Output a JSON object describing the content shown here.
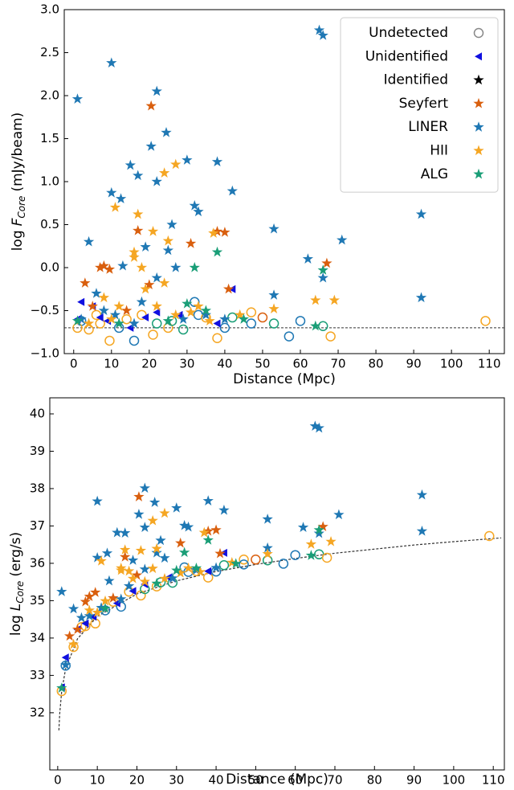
{
  "chart_data": [
    {
      "type": "scatter",
      "xlabel": "Distance (Mpc)",
      "ylabel": {
        "prefix": "log",
        "variable": "F",
        "subscript": "Core",
        "suffix": "(mJy/beam)"
      },
      "xlim": [
        -2.5,
        114
      ],
      "ylim": [
        -1,
        3
      ],
      "xticks": [
        0,
        10,
        20,
        30,
        40,
        50,
        60,
        70,
        80,
        90,
        100,
        110
      ],
      "yticks": [
        {
          "value": -1,
          "label": "−1.0"
        },
        {
          "value": -0.5,
          "label": "−0.5"
        },
        {
          "value": 0,
          "label": "0.0"
        },
        {
          "value": 0.5,
          "label": "0.5"
        },
        {
          "value": 1,
          "label": "1.0"
        },
        {
          "value": 1.5,
          "label": "1.5"
        },
        {
          "value": 2,
          "label": "2.0"
        },
        {
          "value": 2.5,
          "label": "2.5"
        },
        {
          "value": 3,
          "label": "3.0"
        }
      ],
      "legend": "upper right",
      "hline": {
        "value": -0.7,
        "color": "#333333"
      },
      "series": [
        {
          "name": "Undetected",
          "marker": "circle",
          "color": "#888888",
          "x": [
            2,
            4,
            7,
            9.5,
            12,
            16,
            21,
            22,
            25,
            29,
            32,
            33,
            38,
            42,
            47,
            47,
            50,
            53,
            57,
            60,
            66,
            68,
            109,
            1,
            14,
            18,
            26,
            35,
            40,
            6
          ],
          "values": [
            -0.62,
            -0.72,
            -0.65,
            -0.85,
            -0.7,
            -0.85,
            -0.78,
            -0.65,
            -0.7,
            -0.72,
            -0.4,
            -0.55,
            -0.82,
            -0.58,
            -0.52,
            -0.65,
            -0.58,
            -0.65,
            -0.8,
            -0.62,
            -0.68,
            -0.8,
            -0.62,
            -0.7,
            -0.6,
            -0.55,
            -0.62,
            -0.58,
            -0.7,
            -0.55
          ],
          "colors": [
            "#1f78b4",
            "#f5a623",
            "#f5a623",
            "#f5a623",
            "#1f78b4",
            "#1f78b4",
            "#f5a623",
            "#1a9e77",
            "#f5a623",
            "#1a9e77",
            "#1f78b4",
            "#1f78b4",
            "#f5a623",
            "#1a9e77",
            "#f5a623",
            "#1f78b4",
            "#d95f0e",
            "#1a9e77",
            "#1f78b4",
            "#1f78b4",
            "#1a9e77",
            "#f5a623",
            "#f5a623",
            "#f5a623",
            "#f5a623",
            "#f5a623",
            "#1a9e77",
            "#f5a623",
            "#1f78b4",
            "#f5a623"
          ]
        },
        {
          "name": "Unidentified",
          "marker": "triangle",
          "color": "#1010e0",
          "x": [
            2,
            5,
            9,
            22,
            42,
            1,
            7,
            15,
            28,
            38,
            19
          ],
          "values": [
            -0.4,
            -0.45,
            -0.62,
            -0.52,
            -0.25,
            -0.6,
            -0.58,
            -0.7,
            -0.55,
            -0.65,
            -0.58
          ]
        },
        {
          "name": "Identified",
          "marker": "star",
          "color": "#000000",
          "x": [],
          "values": []
        },
        {
          "name": "Seyfert",
          "marker": "star",
          "color": "#d95f0e",
          "x": [
            20.5,
            38,
            40,
            8,
            7,
            9.5,
            17,
            31,
            67,
            3,
            41,
            20,
            14,
            5
          ],
          "values": [
            1.88,
            0.42,
            0.41,
            0.02,
            0,
            -0.02,
            0.43,
            0.28,
            0.05,
            -0.18,
            -0.25,
            -0.2,
            -0.5,
            -0.45
          ]
        },
        {
          "name": "LINER",
          "marker": "star",
          "color": "#1f78b4",
          "x": [
            1,
            10,
            22,
            65,
            66,
            24.5,
            20.5,
            17,
            15,
            10,
            12.5,
            22,
            30,
            38,
            42,
            32,
            33,
            26,
            4,
            13,
            19,
            25,
            27,
            22,
            53,
            62,
            66,
            71,
            92,
            92,
            53,
            6,
            11,
            18,
            35,
            2,
            40,
            8,
            29,
            16
          ],
          "values": [
            1.96,
            2.38,
            2.05,
            2.76,
            2.7,
            1.57,
            1.41,
            1.07,
            1.19,
            0.87,
            0.8,
            1,
            1.25,
            1.23,
            0.89,
            0.72,
            0.65,
            0.5,
            0.3,
            0.02,
            0.24,
            0.2,
            0,
            -0.12,
            0.45,
            0.1,
            -0.12,
            0.32,
            0.62,
            -0.35,
            -0.32,
            -0.3,
            -0.55,
            -0.4,
            -0.55,
            -0.6,
            -0.6,
            -0.5,
            -0.6,
            -0.65
          ]
        },
        {
          "name": "HII",
          "marker": "star",
          "color": "#f5a623",
          "x": [
            11,
            24,
            27,
            17,
            16,
            21,
            25,
            37,
            16,
            18,
            24,
            64,
            69,
            53,
            19,
            8,
            12,
            22,
            33,
            4,
            10,
            27,
            36,
            44,
            31
          ],
          "values": [
            0.7,
            1.1,
            1.2,
            0.62,
            0.18,
            0.42,
            0.31,
            0.4,
            0.12,
            0,
            -0.18,
            -0.38,
            -0.38,
            -0.48,
            -0.25,
            -0.35,
            -0.45,
            -0.45,
            -0.45,
            -0.65,
            -0.6,
            -0.55,
            -0.62,
            -0.55,
            -0.52
          ]
        },
        {
          "name": "ALG",
          "marker": "star",
          "color": "#1a9e77",
          "x": [
            38,
            32,
            66,
            1,
            30,
            64,
            45,
            25,
            12,
            35
          ],
          "values": [
            0.18,
            0,
            -0.03,
            -0.62,
            -0.42,
            -0.68,
            -0.6,
            -0.62,
            -0.65,
            -0.5
          ]
        }
      ]
    },
    {
      "type": "scatter",
      "xlabel": "Distance (Mpc)",
      "ylabel": {
        "prefix": "log",
        "variable": "L",
        "subscript": "Core",
        "suffix": "(erg/s)"
      },
      "xlim": [
        -2,
        112.8
      ],
      "ylim": [
        30.47,
        40.43
      ],
      "xticks": [
        0,
        10,
        20,
        30,
        40,
        50,
        60,
        70,
        80,
        90,
        100,
        110
      ],
      "yticks": [
        32,
        33,
        34,
        35,
        36,
        37,
        38,
        39,
        40
      ],
      "curve": {
        "color": "#333333",
        "x": [
          0.3,
          0.5,
          1,
          2,
          5,
          10,
          20,
          30,
          40,
          50,
          60,
          70,
          80,
          90,
          100,
          112
        ],
        "values": [
          31.53,
          31.97,
          32.57,
          33.18,
          33.98,
          34.58,
          35.18,
          35.53,
          35.78,
          35.97,
          36.13,
          36.27,
          36.38,
          36.49,
          36.58,
          36.68
        ]
      },
      "series": [
        {
          "marker": "circle",
          "color": "#888888",
          "x": [
            2,
            4,
            7,
            9.5,
            12,
            16,
            21,
            22,
            25,
            29,
            32,
            33,
            38,
            42,
            47,
            47,
            50,
            53,
            57,
            60,
            66,
            68,
            109,
            1,
            14,
            18,
            26,
            35,
            40,
            6
          ],
          "values": [
            33.26,
            33.76,
            34.32,
            34.39,
            34.74,
            34.84,
            35.14,
            35.31,
            35.38,
            35.48,
            35.89,
            35.77,
            35.62,
            35.95,
            36.1,
            35.97,
            36.1,
            36.08,
            35.99,
            36.22,
            36.24,
            36.15,
            36.73,
            32.58,
            34.97,
            35.24,
            35.49,
            35.79,
            35.78,
            34.29
          ],
          "colors": [
            "#1f78b4",
            "#f5a623",
            "#f5a623",
            "#f5a623",
            "#1f78b4",
            "#1f78b4",
            "#f5a623",
            "#1a9e77",
            "#f5a623",
            "#1a9e77",
            "#1f78b4",
            "#1f78b4",
            "#f5a623",
            "#1a9e77",
            "#f5a623",
            "#1f78b4",
            "#d95f0e",
            "#1a9e77",
            "#1f78b4",
            "#1f78b4",
            "#1a9e77",
            "#f5a623",
            "#f5a623",
            "#f5a623",
            "#f5a623",
            "#f5a623",
            "#1a9e77",
            "#f5a623",
            "#1f78b4",
            "#f5a623"
          ]
        },
        {
          "marker": "triangle",
          "color": "#1010e0",
          "x": [
            2,
            5,
            9,
            22,
            42,
            1,
            7,
            15,
            28,
            38,
            19
          ],
          "values": [
            33.48,
            34.23,
            34.57,
            35.44,
            36.28,
            32.68,
            34.39,
            34.93,
            35.62,
            35.79,
            35.26
          ]
        },
        {
          "marker": "star",
          "color": "#000000",
          "x": [],
          "values": []
        },
        {
          "marker": "star",
          "color": "#d95f0e",
          "x": [
            20.5,
            38,
            40,
            8,
            7,
            9.5,
            17,
            31,
            67,
            3,
            41,
            20,
            14,
            5
          ],
          "values": [
            37.78,
            36.86,
            36.89,
            35.11,
            34.97,
            35.22,
            36.17,
            36.54,
            36.98,
            34.05,
            36.26,
            35.68,
            35.07,
            34.23
          ]
        },
        {
          "marker": "star",
          "color": "#1f78b4",
          "x": [
            1,
            10,
            22,
            65,
            66,
            24.5,
            20.5,
            17,
            15,
            10,
            12.5,
            22,
            30,
            38,
            42,
            32,
            33,
            26,
            4,
            13,
            19,
            25,
            27,
            22,
            53,
            62,
            66,
            71,
            92,
            92,
            53,
            6,
            11,
            18,
            35,
            2,
            40,
            8,
            29,
            16
          ],
          "values": [
            35.24,
            37.66,
            38.01,
            39.67,
            39.62,
            37.63,
            37.31,
            36.81,
            36.82,
            36.15,
            36.27,
            36.96,
            37.48,
            37.67,
            37.42,
            37.01,
            36.97,
            36.61,
            34.78,
            35.53,
            36.08,
            36.28,
            36.14,
            35.84,
            37.18,
            36.96,
            36.8,
            37.3,
            37.83,
            36.86,
            36.41,
            34.54,
            34.81,
            35.39,
            35.82,
            33.28,
            35.88,
            34.59,
            35.6,
            35.04
          ]
        },
        {
          "marker": "star",
          "color": "#f5a623",
          "x": [
            11,
            24,
            27,
            17,
            16,
            21,
            25,
            37,
            16,
            18,
            24,
            64,
            69,
            53,
            19,
            8,
            12,
            22,
            33,
            4,
            10,
            27,
            36,
            44,
            31
          ],
          "values": [
            36.06,
            37.14,
            37.34,
            36.36,
            35.87,
            36.34,
            36.39,
            36.82,
            35.81,
            35.79,
            35.86,
            36.51,
            36.58,
            36.25,
            35.59,
            34.74,
            34.99,
            35.51,
            35.87,
            33.83,
            34.68,
            35.59,
            35.77,
            36.02,
            35.74
          ]
        },
        {
          "marker": "star",
          "color": "#1a9e77",
          "x": [
            38,
            32,
            66,
            1,
            30,
            64,
            45,
            25,
            12,
            35
          ],
          "values": [
            36.62,
            36.29,
            36.89,
            32.66,
            35.81,
            36.21,
            35.99,
            35.46,
            34.79,
            35.87
          ]
        }
      ]
    }
  ]
}
